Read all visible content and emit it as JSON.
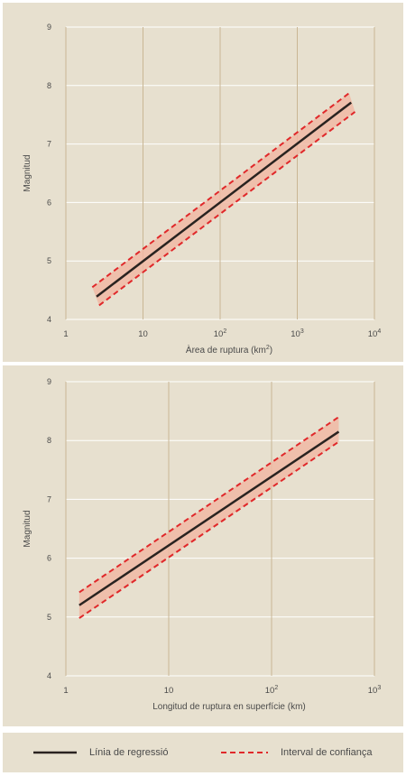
{
  "colors": {
    "background": "#e7e0cf",
    "regression_line": "#2a2320",
    "confidence_line": "#e0282a",
    "confidence_fill": "#f0b9a4",
    "vertical_grid": "#c9b694",
    "horizontal_grid": "#ffffff",
    "text": "#4a4a4a"
  },
  "legend": {
    "regression_label": "Línia de regressió",
    "confidence_label": "Interval de confiança"
  },
  "chart_data": [
    {
      "type": "line",
      "xlabel_prefix": "Àrea de ruptura (km",
      "xlabel_sup": "2",
      "xlabel_suffix": ")",
      "ylabel": "Magnitud",
      "xscale": "log",
      "xlim": [
        1,
        10000
      ],
      "ylim": [
        4,
        9
      ],
      "xticks": [
        {
          "value": 1,
          "base": "1",
          "exp": ""
        },
        {
          "value": 10,
          "base": "10",
          "exp": ""
        },
        {
          "value": 100,
          "base": "10",
          "exp": "2"
        },
        {
          "value": 1000,
          "base": "10",
          "exp": "3"
        },
        {
          "value": 10000,
          "base": "10",
          "exp": "4"
        }
      ],
      "yticks": [
        4,
        5,
        6,
        7,
        8,
        9
      ],
      "grid": true,
      "series": [
        {
          "name": "Línia de regressió",
          "role": "regression",
          "x": [
            2.5,
            5000
          ],
          "y": [
            4.39,
            7.71
          ]
        },
        {
          "name": "Interval de confiança",
          "role": "upper",
          "x": [
            2.2,
            4700
          ],
          "y": [
            4.55,
            7.87
          ]
        },
        {
          "name": "Interval de confiança",
          "role": "lower",
          "x": [
            2.7,
            5600
          ],
          "y": [
            4.24,
            7.55
          ]
        }
      ]
    },
    {
      "type": "line",
      "xlabel_prefix": "Longitud de ruptura en superfície (km)",
      "xlabel_sup": "",
      "xlabel_suffix": "",
      "ylabel": "Magnitud",
      "xscale": "log",
      "xlim": [
        1,
        1000
      ],
      "ylim": [
        4,
        9
      ],
      "xticks": [
        {
          "value": 1,
          "base": "1",
          "exp": ""
        },
        {
          "value": 10,
          "base": "10",
          "exp": ""
        },
        {
          "value": 100,
          "base": "10",
          "exp": "2"
        },
        {
          "value": 1000,
          "base": "10",
          "exp": "3"
        }
      ],
      "yticks": [
        4,
        5,
        6,
        7,
        8,
        9
      ],
      "grid": true,
      "series": [
        {
          "name": "Línia de regressió",
          "role": "regression",
          "x": [
            1.35,
            450
          ],
          "y": [
            5.2,
            8.15
          ]
        },
        {
          "name": "Interval de confiança",
          "role": "upper",
          "x": [
            1.35,
            450
          ],
          "y": [
            5.42,
            8.4
          ]
        },
        {
          "name": "Interval de confiança",
          "role": "lower",
          "x": [
            1.35,
            450
          ],
          "y": [
            4.98,
            7.98
          ]
        }
      ]
    }
  ]
}
